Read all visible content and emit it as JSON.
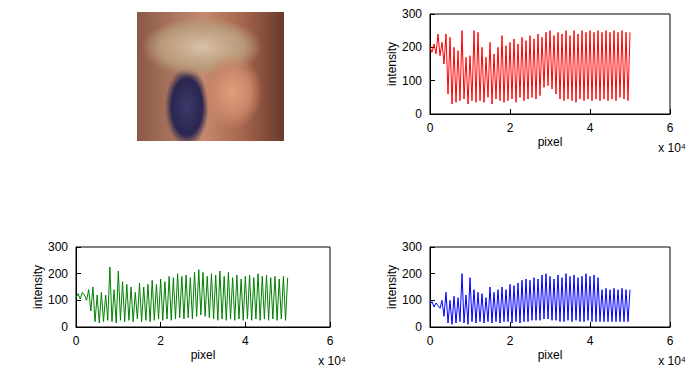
{
  "chart_data": [
    {
      "type": "line",
      "color": "#ff0000",
      "xlabel": "pixel",
      "ylabel": "intensity",
      "annotation": "x 10⁴",
      "xlim": [
        0,
        6
      ],
      "xticks": [
        0,
        2,
        4,
        6
      ],
      "ylim": [
        0,
        300
      ],
      "yticks": [
        0,
        100,
        200,
        300
      ],
      "x": [
        0,
        0.05,
        0.1,
        0.15,
        0.2,
        0.25,
        0.3,
        0.35,
        0.4,
        0.45,
        0.5,
        0.55,
        0.6,
        0.65,
        0.7,
        0.75,
        0.8,
        0.85,
        0.9,
        0.95,
        1,
        1.05,
        1.1,
        1.15,
        1.2,
        1.25,
        1.3,
        1.35,
        1.4,
        1.45,
        1.5,
        1.55,
        1.6,
        1.65,
        1.7,
        1.75,
        1.8,
        1.85,
        1.9,
        1.95,
        2,
        2.05,
        2.1,
        2.15,
        2.2,
        2.25,
        2.3,
        2.35,
        2.4,
        2.45,
        2.5,
        2.55,
        2.6,
        2.65,
        2.7,
        2.75,
        2.8,
        2.85,
        2.9,
        2.95,
        3,
        3.05,
        3.1,
        3.15,
        3.2,
        3.25,
        3.3,
        3.35,
        3.4,
        3.45,
        3.5,
        3.55,
        3.6,
        3.65,
        3.7,
        3.75,
        3.8,
        3.85,
        3.9,
        3.95,
        4,
        4.05,
        4.1,
        4.15,
        4.2,
        4.25,
        4.3,
        4.35,
        4.4,
        4.45,
        4.5,
        4.55,
        4.6,
        4.65,
        4.7,
        4.75,
        4.8,
        4.85,
        4.9,
        4.95,
        5
      ],
      "values": [
        200,
        185,
        210,
        180,
        240,
        175,
        215,
        150,
        240,
        60,
        230,
        30,
        200,
        35,
        190,
        40,
        250,
        45,
        170,
        30,
        175,
        40,
        250,
        35,
        245,
        40,
        200,
        35,
        170,
        50,
        215,
        30,
        180,
        45,
        200,
        40,
        235,
        35,
        205,
        40,
        215,
        45,
        225,
        35,
        210,
        50,
        230,
        40,
        220,
        45,
        235,
        50,
        225,
        45,
        240,
        55,
        230,
        80,
        245,
        85,
        250,
        75,
        235,
        60,
        245,
        45,
        240,
        40,
        250,
        45,
        235,
        40,
        250,
        35,
        240,
        45,
        250,
        40,
        245,
        45,
        250,
        40,
        245,
        45,
        250,
        40,
        245,
        45,
        250,
        40,
        245,
        45,
        250,
        40,
        245,
        50,
        250,
        45,
        245,
        40,
        245
      ]
    },
    {
      "type": "line",
      "color": "#008000",
      "xlabel": "pixel",
      "ylabel": "intensity",
      "annotation": "x 10⁴",
      "xlim": [
        0,
        6
      ],
      "xticks": [
        0,
        2,
        4,
        6
      ],
      "ylim": [
        0,
        300
      ],
      "yticks": [
        0,
        100,
        200,
        300
      ],
      "x": [
        0,
        0.05,
        0.1,
        0.15,
        0.2,
        0.25,
        0.3,
        0.35,
        0.4,
        0.45,
        0.5,
        0.55,
        0.6,
        0.65,
        0.7,
        0.75,
        0.8,
        0.85,
        0.9,
        0.95,
        1,
        1.05,
        1.1,
        1.15,
        1.2,
        1.25,
        1.3,
        1.35,
        1.4,
        1.45,
        1.5,
        1.55,
        1.6,
        1.65,
        1.7,
        1.75,
        1.8,
        1.85,
        1.9,
        1.95,
        2,
        2.05,
        2.1,
        2.15,
        2.2,
        2.25,
        2.3,
        2.35,
        2.4,
        2.45,
        2.5,
        2.55,
        2.6,
        2.65,
        2.7,
        2.75,
        2.8,
        2.85,
        2.9,
        2.95,
        3,
        3.05,
        3.1,
        3.15,
        3.2,
        3.25,
        3.3,
        3.35,
        3.4,
        3.45,
        3.5,
        3.55,
        3.6,
        3.65,
        3.7,
        3.75,
        3.8,
        3.85,
        3.9,
        3.95,
        4,
        4.05,
        4.1,
        4.15,
        4.2,
        4.25,
        4.3,
        4.35,
        4.4,
        4.45,
        4.5,
        4.55,
        4.6,
        4.65,
        4.7,
        4.75,
        4.8,
        4.85,
        4.9,
        4.95,
        5
      ],
      "values": [
        110,
        125,
        105,
        130,
        120,
        100,
        140,
        60,
        150,
        20,
        120,
        15,
        130,
        20,
        120,
        25,
        225,
        20,
        140,
        15,
        210,
        25,
        170,
        20,
        160,
        25,
        150,
        20,
        130,
        30,
        165,
        20,
        150,
        25,
        160,
        20,
        175,
        25,
        160,
        30,
        180,
        25,
        170,
        30,
        190,
        25,
        185,
        30,
        200,
        35,
        190,
        30,
        195,
        35,
        185,
        30,
        205,
        40,
        215,
        45,
        205,
        40,
        190,
        35,
        200,
        30,
        195,
        25,
        210,
        30,
        190,
        25,
        205,
        30,
        185,
        25,
        195,
        30,
        180,
        25,
        190,
        30,
        195,
        25,
        185,
        30,
        200,
        25,
        190,
        30,
        195,
        25,
        185,
        30,
        190,
        25,
        180,
        30,
        190,
        25,
        185
      ]
    },
    {
      "type": "line",
      "color": "#0000ff",
      "xlabel": "pixel",
      "ylabel": "intensity",
      "annotation": "x 10⁴",
      "xlim": [
        0,
        6
      ],
      "xticks": [
        0,
        2,
        4,
        6
      ],
      "ylim": [
        0,
        300
      ],
      "yticks": [
        0,
        100,
        200,
        300
      ],
      "x": [
        0,
        0.05,
        0.1,
        0.15,
        0.2,
        0.25,
        0.3,
        0.35,
        0.4,
        0.45,
        0.5,
        0.55,
        0.6,
        0.65,
        0.7,
        0.75,
        0.8,
        0.85,
        0.9,
        0.95,
        1,
        1.05,
        1.1,
        1.15,
        1.2,
        1.25,
        1.3,
        1.35,
        1.4,
        1.45,
        1.5,
        1.55,
        1.6,
        1.65,
        1.7,
        1.75,
        1.8,
        1.85,
        1.9,
        1.95,
        2,
        2.05,
        2.1,
        2.15,
        2.2,
        2.25,
        2.3,
        2.35,
        2.4,
        2.45,
        2.5,
        2.55,
        2.6,
        2.65,
        2.7,
        2.75,
        2.8,
        2.85,
        2.9,
        2.95,
        3,
        3.05,
        3.1,
        3.15,
        3.2,
        3.25,
        3.3,
        3.35,
        3.4,
        3.45,
        3.5,
        3.55,
        3.6,
        3.65,
        3.7,
        3.75,
        3.8,
        3.85,
        3.9,
        3.95,
        4,
        4.05,
        4.1,
        4.15,
        4.2,
        4.25,
        4.3,
        4.35,
        4.4,
        4.45,
        4.5,
        4.55,
        4.6,
        4.65,
        4.7,
        4.75,
        4.8,
        4.85,
        4.9,
        4.95,
        5
      ],
      "values": [
        85,
        95,
        75,
        90,
        80,
        70,
        100,
        40,
        130,
        15,
        100,
        10,
        115,
        15,
        110,
        20,
        200,
        15,
        120,
        10,
        185,
        20,
        140,
        15,
        130,
        20,
        125,
        15,
        110,
        20,
        150,
        15,
        130,
        20,
        140,
        15,
        150,
        20,
        140,
        20,
        160,
        15,
        155,
        20,
        165,
        15,
        175,
        20,
        180,
        20,
        175,
        25,
        185,
        25,
        180,
        25,
        195,
        30,
        200,
        30,
        190,
        25,
        180,
        25,
        195,
        20,
        185,
        20,
        200,
        25,
        190,
        20,
        195,
        25,
        185,
        20,
        190,
        20,
        200,
        25,
        190,
        20,
        195,
        20,
        185,
        20,
        140,
        20,
        145,
        20,
        140,
        20,
        145,
        20,
        140,
        20,
        145,
        20,
        140,
        20,
        140
      ]
    }
  ]
}
